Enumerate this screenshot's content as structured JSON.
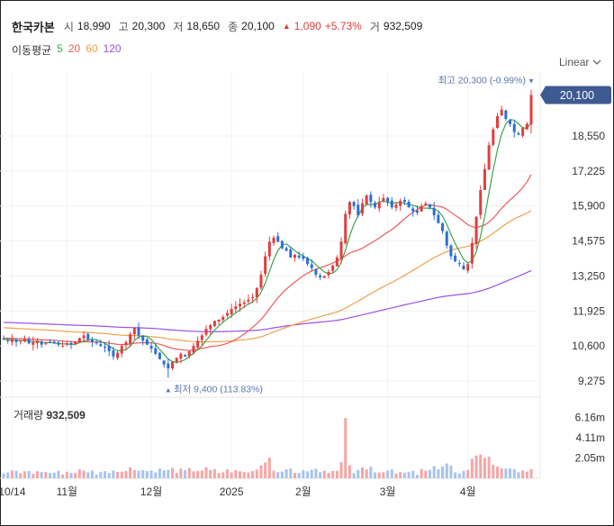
{
  "header": {
    "name": "한국카본",
    "open_label": "시",
    "open": "18,990",
    "high_label": "고",
    "high": "20,300",
    "low_label": "저",
    "low": "18,650",
    "close_label": "종",
    "close": "20,100",
    "change_arrow": "▲",
    "change": "1,090",
    "change_pct": "+5.73%",
    "volume_label": "거",
    "volume": "932,509"
  },
  "ma": {
    "label": "이동평균",
    "p5": "5",
    "p20": "20",
    "p60": "60",
    "p120": "120"
  },
  "scale_mode": "Linear",
  "annotations": {
    "max_text": "최고 20,300 (-0.99%)",
    "min_text": "최저 9,400 (113.83%)",
    "last_price": "20,100"
  },
  "volume_panel": {
    "label": "거래량",
    "value": "932,509"
  },
  "colors": {
    "up": "#e23d3d",
    "down": "#2b6fd6",
    "ma5": "#3aa64b",
    "ma20": "#ef5b5b",
    "ma60": "#f2a04b",
    "ma120": "#9a50e6",
    "vol_up": "#f6a5a5",
    "vol_down": "#a5c3ef",
    "price_tag": "#3e5a91"
  },
  "chart_data": {
    "type": "candlestick",
    "y_ticks": [
      "18,550",
      "17,225",
      "15,900",
      "14,575",
      "13,250",
      "11,925",
      "10,600",
      "9,275"
    ],
    "ylim": [
      9000,
      20600
    ],
    "x_ticks": [
      {
        "label": "10/14",
        "i": 2
      },
      {
        "label": "11월",
        "i": 15
      },
      {
        "label": "12월",
        "i": 35
      },
      {
        "label": "2025",
        "i": 54
      },
      {
        "label": "2월",
        "i": 71
      },
      {
        "label": "3월",
        "i": 91
      },
      {
        "label": "4월",
        "i": 110
      }
    ],
    "volume_ticks": [
      "6.16m",
      "4.11m",
      "2.05m"
    ],
    "volume_max_m": 7.2,
    "closes": [
      10850,
      10800,
      10850,
      10750,
      10800,
      10850,
      10700,
      10750,
      10800,
      10650,
      10700,
      10750,
      10700,
      10650,
      10600,
      10700,
      10650,
      10750,
      10900,
      11000,
      10850,
      10750,
      10700,
      10600,
      10550,
      10400,
      10200,
      10350,
      10600,
      10750,
      11050,
      11300,
      11000,
      10800,
      10650,
      10500,
      10300,
      10100,
      9900,
      9750,
      10000,
      10150,
      10300,
      10200,
      10400,
      10600,
      10800,
      11000,
      11250,
      11400,
      11550,
      11600,
      11700,
      11850,
      12000,
      12100,
      12200,
      12250,
      12350,
      12450,
      12800,
      13300,
      14000,
      14550,
      14700,
      14550,
      14300,
      14200,
      13950,
      14050,
      13950,
      13900,
      13700,
      13550,
      13300,
      13200,
      13250,
      13400,
      13650,
      13950,
      14550,
      15600,
      16050,
      15900,
      15550,
      16000,
      16300,
      16050,
      15850,
      16050,
      16200,
      16050,
      15850,
      15950,
      16100,
      16050,
      15850,
      15700,
      15650,
      15900,
      16000,
      15850,
      15550,
      15250,
      14950,
      14400,
      14000,
      13800,
      13700,
      13500,
      13700,
      14500,
      15500,
      16500,
      17300,
      18200,
      18800,
      19300,
      19550,
      19200,
      19000,
      18700,
      18600,
      18850,
      19010,
      20100
    ],
    "ma5_end": 19000,
    "ma20_end": 17300,
    "ma60_end": 16000,
    "ma120_end": 13700,
    "max": {
      "value": 20300,
      "label": "최고 20,300 (-0.99%)"
    },
    "min": {
      "value": 9400,
      "label": "최저 9,400 (113.83%)"
    },
    "last": 20100
  }
}
